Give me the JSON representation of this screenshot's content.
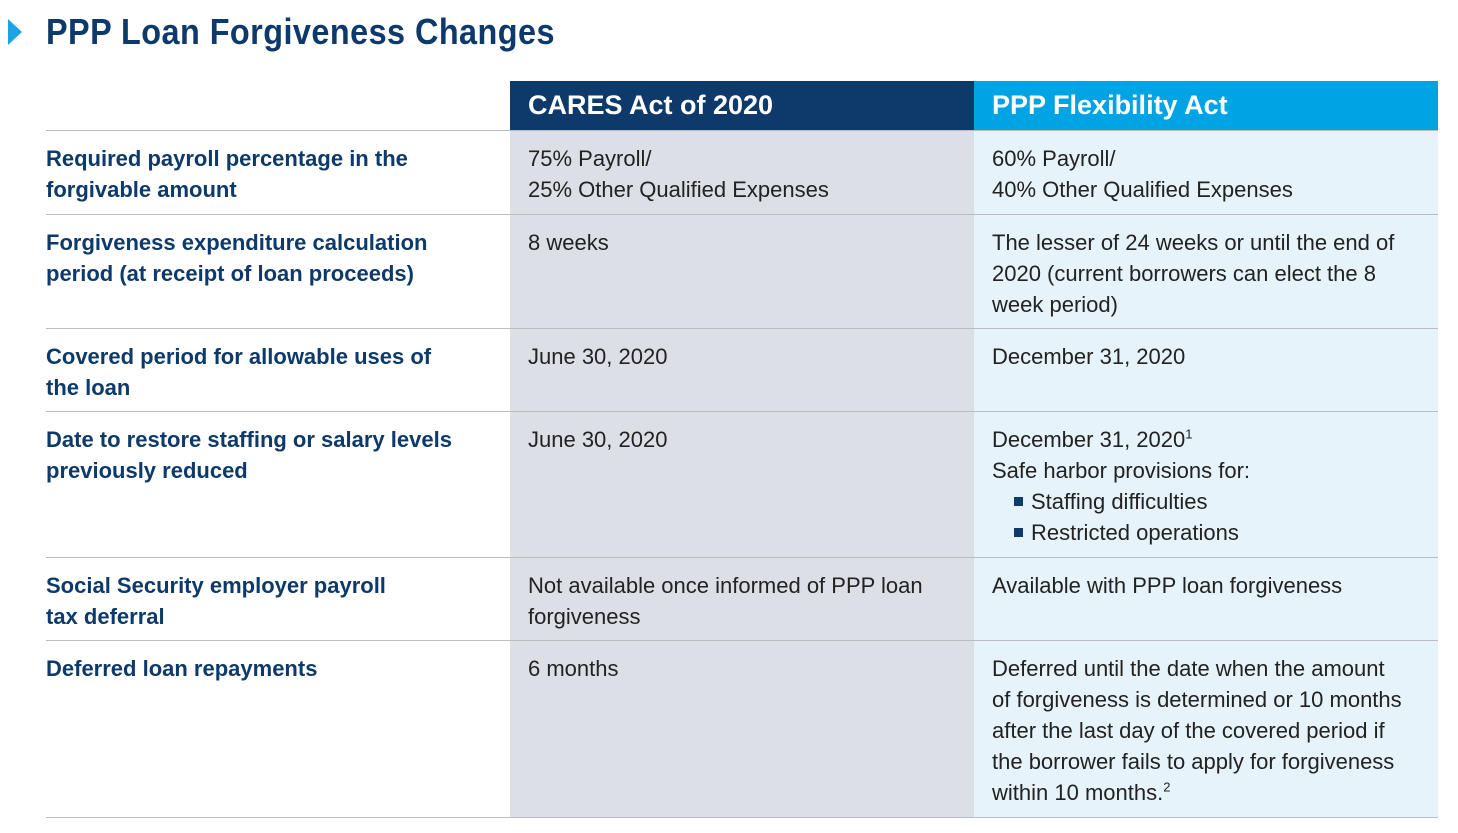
{
  "title": "PPP Loan Forgiveness Changes",
  "colors": {
    "title": "#0d3a6a",
    "arrow": "#1ba3e3",
    "cares_header": "#0d3a6a",
    "flex_header": "#00a4e4",
    "cares_column": "#dcdfe6",
    "flex_column": "#e6f3fa"
  },
  "headers": {
    "cares": "CARES Act of 2020",
    "flex": "PPP Flexibility Act"
  },
  "rows": [
    {
      "label": [
        "Required payroll percentage in the",
        "forgivable amount"
      ],
      "cares": [
        "75% Payroll/",
        "25% Other Qualified Expenses"
      ],
      "flex": [
        "60% Payroll/",
        "40% Other Qualified Expenses"
      ]
    },
    {
      "label": [
        "Forgiveness expenditure calculation",
        "period (at receipt of loan proceeds)"
      ],
      "cares": [
        "8 weeks"
      ],
      "flex": [
        "The lesser of 24 weeks or until the end of",
        "2020 (current borrowers can elect the 8",
        "week period)"
      ]
    },
    {
      "label": [
        "Covered period for allowable uses of",
        "the loan"
      ],
      "cares": [
        "June 30, 2020"
      ],
      "flex": [
        "December 31, 2020"
      ]
    },
    {
      "label": [
        "Date to restore staffing or salary levels",
        "previously reduced"
      ],
      "cares": [
        "June 30, 2020"
      ],
      "flex": [
        "December 31, 2020",
        "Safe harbor provisions for:"
      ],
      "flex_sup": "1",
      "flex_bullets": [
        "Staffing difficulties",
        "Restricted operations"
      ]
    },
    {
      "label": [
        "Social Security employer payroll",
        "tax deferral"
      ],
      "cares": [
        "Not available once informed of PPP loan",
        "forgiveness"
      ],
      "flex": [
        "Available with PPP loan forgiveness"
      ]
    },
    {
      "label": [
        "Deferred loan repayments"
      ],
      "cares": [
        "6 months"
      ],
      "flex": [
        "Deferred until the date when the amount",
        "of forgiveness is determined or 10 months",
        "after the last day of the covered period if",
        "the borrower fails to apply for forgiveness",
        "within 10 months."
      ],
      "flex_end_sup": "2"
    }
  ]
}
